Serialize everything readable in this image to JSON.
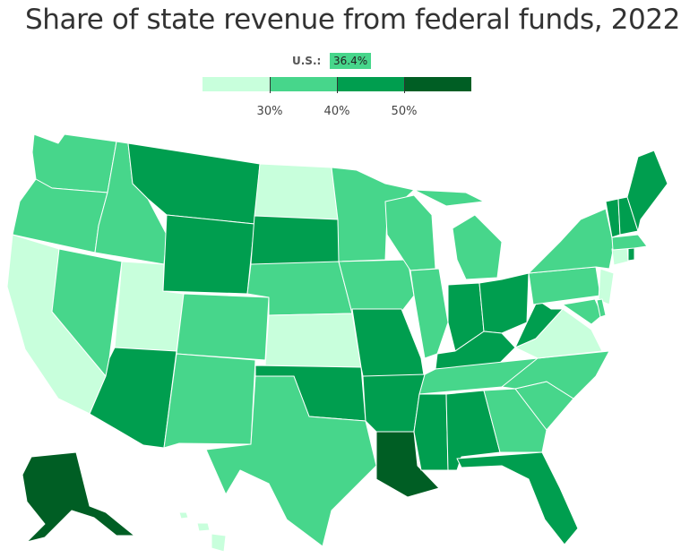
{
  "title": "Share of state revenue from federal funds, 2022",
  "us_average": {
    "label": "U.S.:",
    "value": "36.4%"
  },
  "legend": {
    "bins": [
      {
        "color": "#c8ffdc"
      },
      {
        "color": "#47d68b"
      },
      {
        "color": "#009e4f"
      },
      {
        "color": "#005e24"
      }
    ],
    "thresholds": [
      "30%",
      "40%",
      "50%"
    ]
  },
  "colors": {
    "lightest": "#c8ffdc",
    "light": "#47d68b",
    "medium": "#009e4f",
    "dark": "#005e24"
  }
}
